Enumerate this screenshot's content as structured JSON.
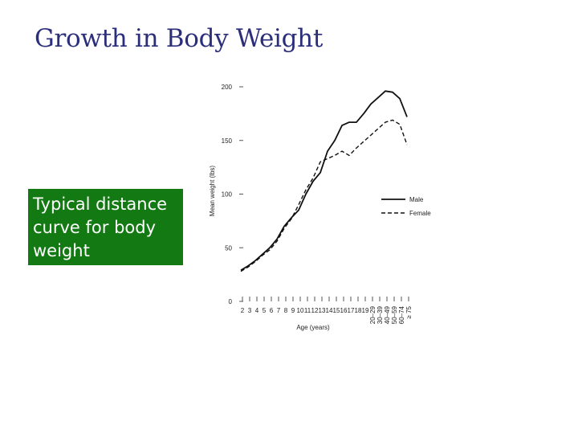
{
  "slide": {
    "title": "Growth in Body Weight",
    "caption": "Typical distance curve for body weight"
  },
  "chart_data": {
    "type": "line",
    "ylabel": "Mean weight (lbs)",
    "xlabel": "Age (years)",
    "ylim": [
      0,
      200
    ],
    "yticks": [
      0,
      50,
      100,
      150,
      200
    ],
    "categories": [
      "2",
      "3",
      "4",
      "5",
      "6",
      "7",
      "8",
      "9",
      "10",
      "11",
      "12",
      "13",
      "14",
      "15",
      "16",
      "17",
      "18",
      "19",
      "20–29",
      "30–39",
      "40–49",
      "50–59",
      "60–74",
      "≥ 75"
    ],
    "grid": false,
    "legend_position": "right",
    "colors": {
      "line": "#111111",
      "title": "#2b2f7a",
      "caption_bg": "#137a13"
    },
    "series": [
      {
        "name": "Male",
        "style": "solid",
        "values": [
          29,
          33,
          38,
          44,
          50,
          58,
          70,
          78,
          85,
          100,
          112,
          120,
          140,
          150,
          164,
          167,
          167,
          175,
          184,
          190,
          196,
          195,
          189,
          172
        ]
      },
      {
        "name": "Female",
        "style": "dashed",
        "values": [
          28,
          32,
          37,
          43,
          48,
          56,
          68,
          77,
          90,
          104,
          115,
          130,
          133,
          136,
          140,
          136,
          143,
          149,
          155,
          161,
          167,
          169,
          165,
          146
        ]
      }
    ]
  }
}
